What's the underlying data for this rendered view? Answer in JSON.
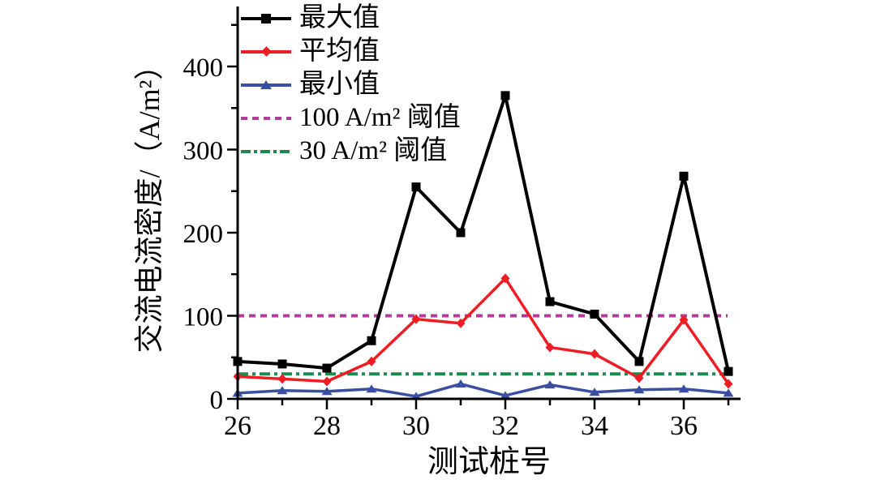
{
  "chart_data": {
    "type": "line",
    "title": "",
    "xlabel": "测试桩号",
    "ylabel": "交流电流密度/（A/m²）",
    "x": [
      26,
      27,
      28,
      29,
      30,
      31,
      32,
      33,
      34,
      35,
      36,
      37
    ],
    "series": [
      {
        "name": "最大值",
        "marker": "square",
        "color": "#000000",
        "values": [
          45,
          42,
          37,
          70,
          255,
          200,
          365,
          117,
          102,
          45,
          268,
          33
        ]
      },
      {
        "name": "平均值",
        "marker": "diamond",
        "color": "#ee1d23",
        "values": [
          27,
          24,
          21,
          45,
          96,
          91,
          145,
          62,
          54,
          25,
          95,
          18
        ]
      },
      {
        "name": "最小值",
        "marker": "triangle",
        "color": "#3b4fa2",
        "values": [
          7,
          10,
          9,
          12,
          3,
          18,
          4,
          17,
          8,
          11,
          12,
          7
        ]
      }
    ],
    "thresholds": [
      {
        "name": "100 A/m² 阈值",
        "value": 100,
        "color": "#b43a9b",
        "style": "dashed"
      },
      {
        "name": "30 A/m² 阈值",
        "value": 30,
        "color": "#1e8a50",
        "style": "dashdot"
      }
    ],
    "xlim": [
      26,
      37.3
    ],
    "ylim": [
      0,
      470
    ],
    "x_major_ticks": [
      26,
      28,
      30,
      32,
      34,
      36
    ],
    "x_minor_ticks": [
      27,
      29,
      31,
      33,
      35,
      37
    ],
    "y_major_ticks": [
      0,
      100,
      200,
      300,
      400
    ],
    "y_minor_ticks": [
      50,
      150,
      250,
      350,
      450
    ],
    "legend_position": "top-left",
    "grid": false,
    "background": "#ffffff"
  }
}
